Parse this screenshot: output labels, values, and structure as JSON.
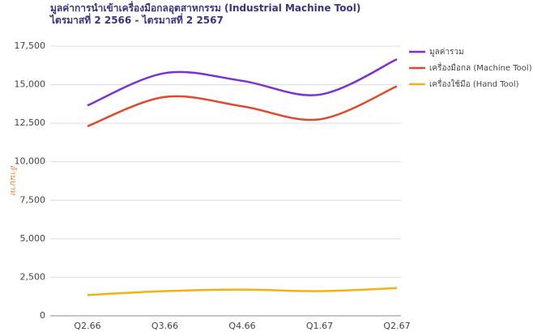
{
  "chart_data": {
    "type": "line",
    "title": "มูลค่าการนำเข้าเครื่องมือกลอุตสาหกรรม (Industrial Machine Tool) ไตรมาสที่ 2 2566 - ไตรมาสที่ 2 2567",
    "y_label": "ล้านบาท",
    "categories": [
      "Q2.66",
      "Q3.66",
      "Q4.66",
      "Q1.67",
      "Q2.67"
    ],
    "series": [
      {
        "name": "มูลค่ารวม",
        "color": "#7b2fd6",
        "values": [
          13650,
          15750,
          15250,
          14350,
          16650
        ]
      },
      {
        "name": "เครื่องมือกล (Machine Tool)",
        "color": "#e0492c",
        "values": [
          12300,
          14200,
          13600,
          12750,
          14900
        ]
      },
      {
        "name": "เครื่องใช้มือ (Hand Tool)",
        "color": "#f5b014",
        "values": [
          1350,
          1600,
          1700,
          1600,
          1800
        ]
      }
    ],
    "ylim": [
      0,
      17500
    ],
    "yticks": [
      0,
      {
        "value": 2500,
        "label": "2,500"
      },
      {
        "value": 5000,
        "label": "5,000"
      },
      {
        "value": 7500,
        "label": "7,500"
      },
      {
        "value": 10000,
        "label": "10,000"
      },
      {
        "value": 12500,
        "label": "12,500"
      },
      {
        "value": 15000,
        "label": "15,000"
      },
      {
        "value": 17500,
        "label": "17,500"
      }
    ],
    "grid": true,
    "legend": "right"
  }
}
